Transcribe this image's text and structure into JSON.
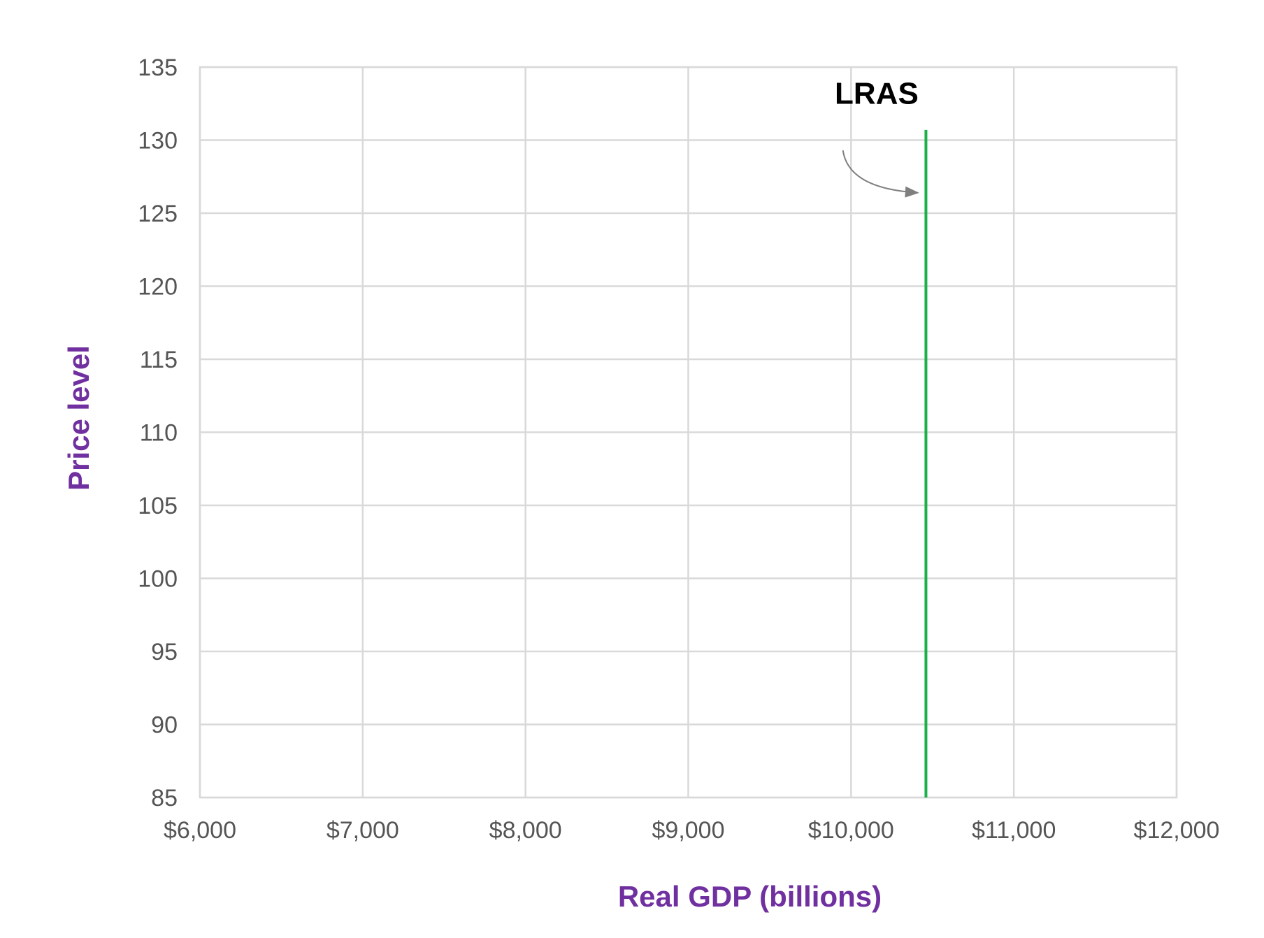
{
  "chart_data": {
    "type": "line",
    "title": "",
    "xlabel": "Real GDP (billions)",
    "ylabel": "Price level",
    "xlim": [
      6000,
      12000
    ],
    "ylim": [
      85,
      135
    ],
    "x_ticks": [
      6000,
      7000,
      8000,
      9000,
      10000,
      11000,
      12000
    ],
    "x_tick_labels": [
      "$6,000",
      "$7,000",
      "$8,000",
      "$9,000",
      "$10,000",
      "$11,000",
      "$12,000"
    ],
    "y_ticks": [
      85,
      90,
      95,
      100,
      105,
      110,
      115,
      120,
      125,
      130,
      135
    ],
    "y_tick_labels": [
      "85",
      "90",
      "95",
      "100",
      "105",
      "110",
      "115",
      "120",
      "125",
      "130",
      "135"
    ],
    "grid": true,
    "legend": "none",
    "series": [
      {
        "name": "LRAS",
        "color": "#1ab04a",
        "x": [
          10460,
          10460
        ],
        "y": [
          85,
          130.7
        ]
      }
    ],
    "annotations": [
      {
        "text": "LRAS",
        "text_x": 9900,
        "text_y": 132.5,
        "arrow_from": [
          9950,
          129.3
        ],
        "arrow_to": [
          10410,
          126.4
        ]
      }
    ]
  }
}
